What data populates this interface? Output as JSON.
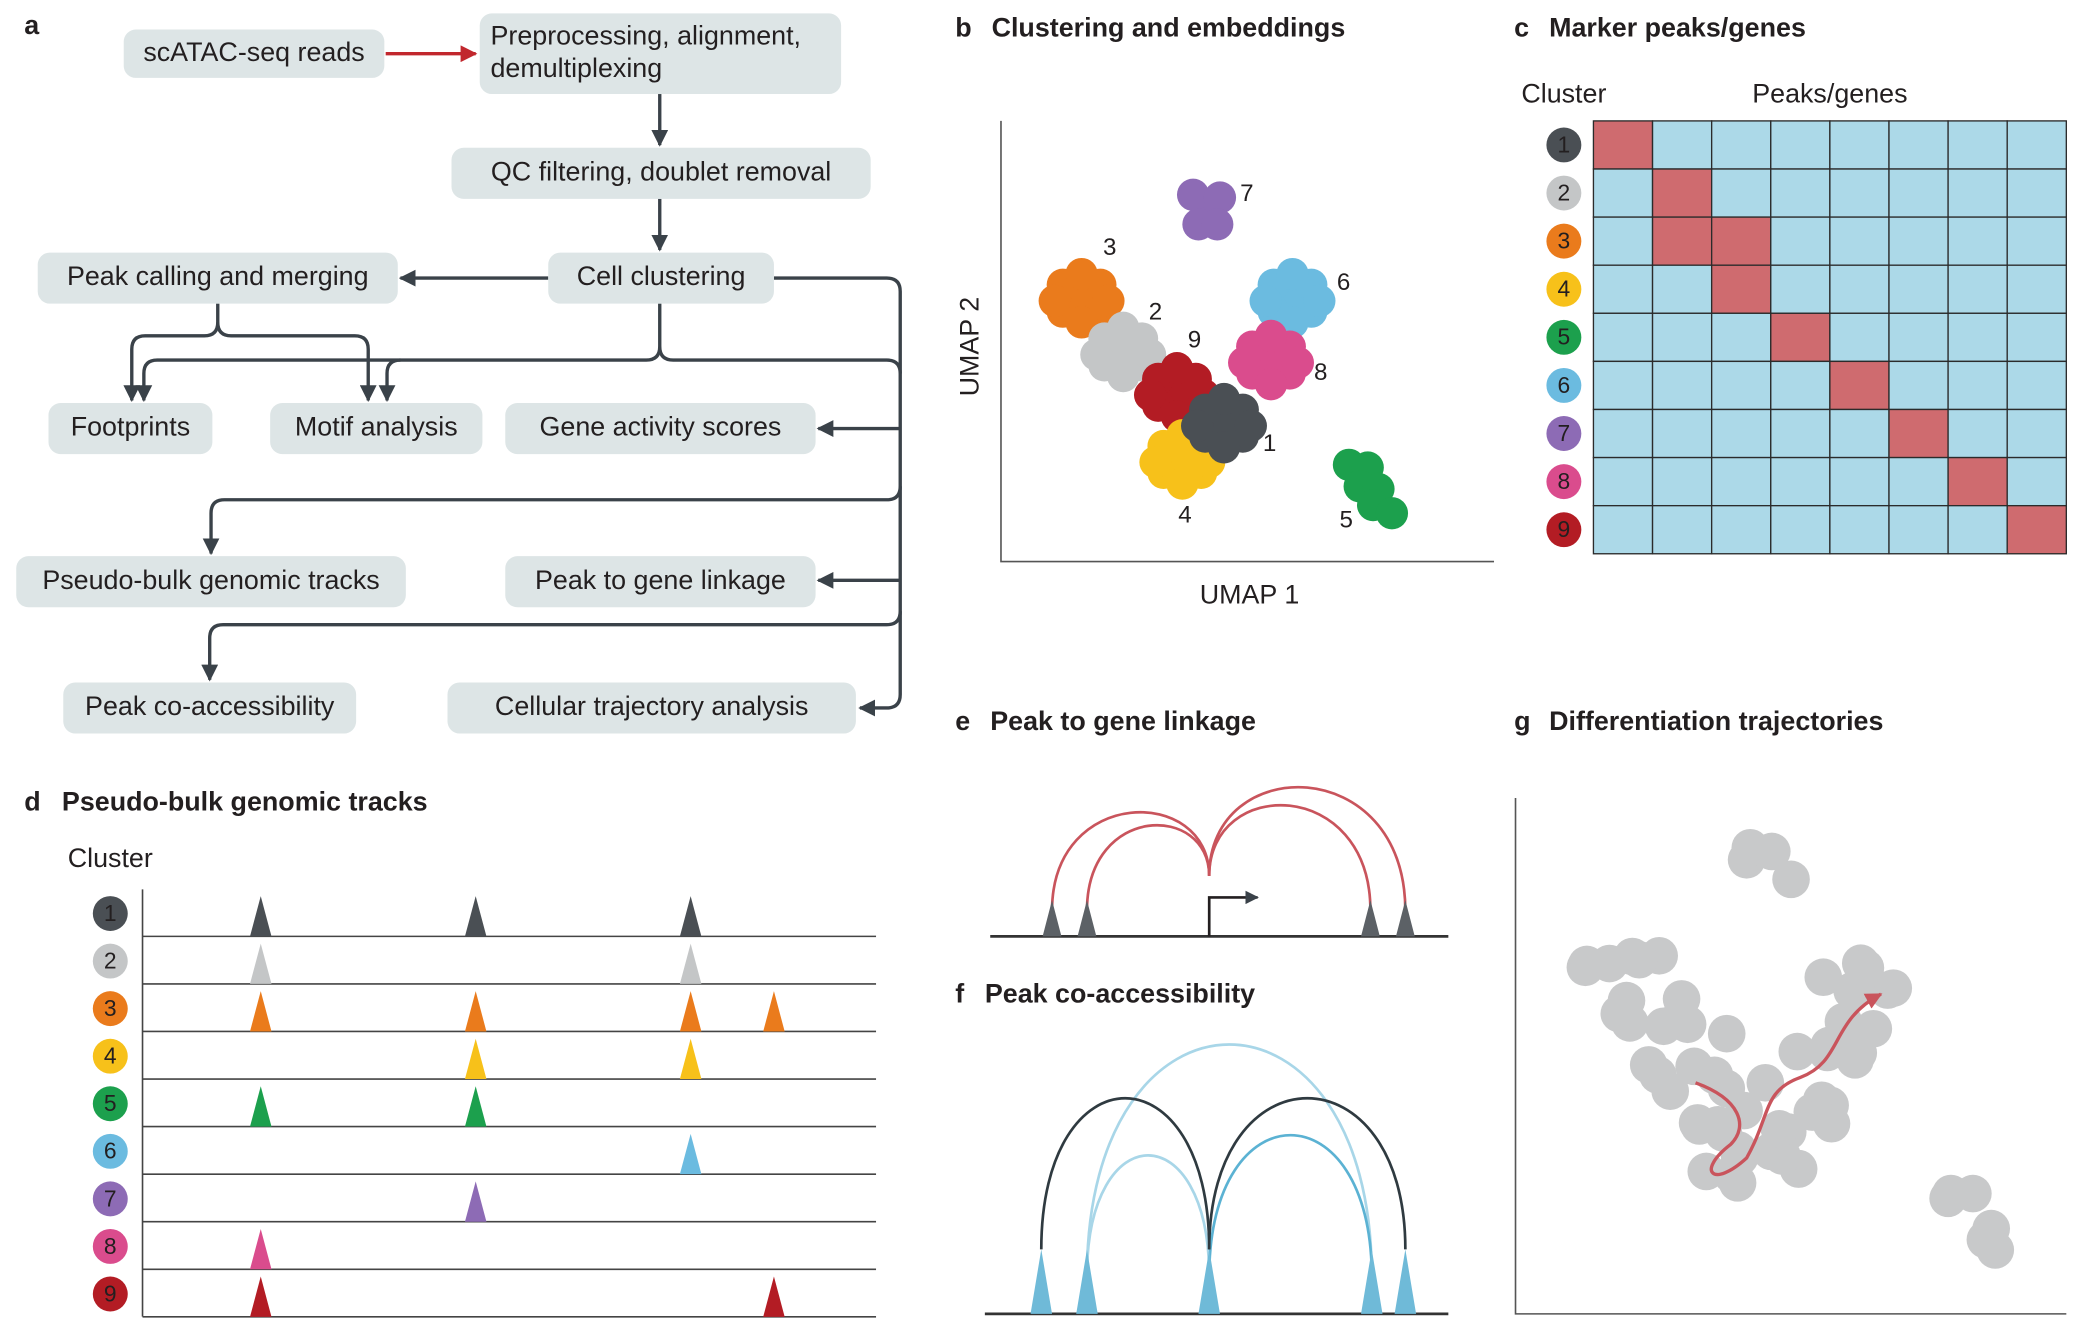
{
  "panels": {
    "a": {
      "letter": "a",
      "nodes": [
        {
          "lines": [
            "scATAC-seq reads"
          ]
        },
        {
          "lines": [
            "Preprocessing, alignment,",
            "demultiplexing"
          ]
        },
        {
          "lines": [
            "QC filtering, doublet removal"
          ]
        },
        {
          "lines": [
            "Cell clustering"
          ]
        },
        {
          "lines": [
            "Peak calling and merging"
          ]
        },
        {
          "lines": [
            "Footprints"
          ]
        },
        {
          "lines": [
            "Motif analysis"
          ]
        },
        {
          "lines": [
            "Gene activity scores"
          ]
        },
        {
          "lines": [
            "Pseudo-bulk genomic tracks"
          ]
        },
        {
          "lines": [
            "Peak to gene linkage"
          ]
        },
        {
          "lines": [
            "Peak co-accessibility"
          ]
        },
        {
          "lines": [
            "Cellular trajectory analysis"
          ]
        }
      ]
    },
    "b": {
      "letter": "b",
      "title": "Clustering and embeddings",
      "x_label": "UMAP 1",
      "y_label": "UMAP 2",
      "clusters": [
        "1",
        "2",
        "3",
        "4",
        "5",
        "6",
        "7",
        "8",
        "9"
      ]
    },
    "c": {
      "letter": "c",
      "title": "Marker peaks/genes",
      "row_header": "Cluster",
      "column_header": "Peaks/genes",
      "clusters": [
        "1",
        "2",
        "3",
        "4",
        "5",
        "6",
        "7",
        "8",
        "9"
      ]
    },
    "d": {
      "letter": "d",
      "title": "Pseudo-bulk genomic tracks",
      "row_header": "Cluster",
      "clusters": [
        "1",
        "2",
        "3",
        "4",
        "5",
        "6",
        "7",
        "8",
        "9"
      ]
    },
    "e": {
      "letter": "e",
      "title": "Peak to gene linkage"
    },
    "f": {
      "letter": "f",
      "title": "Peak co-accessibility"
    },
    "g": {
      "letter": "g",
      "title": "Differentiation trajectories"
    }
  }
}
